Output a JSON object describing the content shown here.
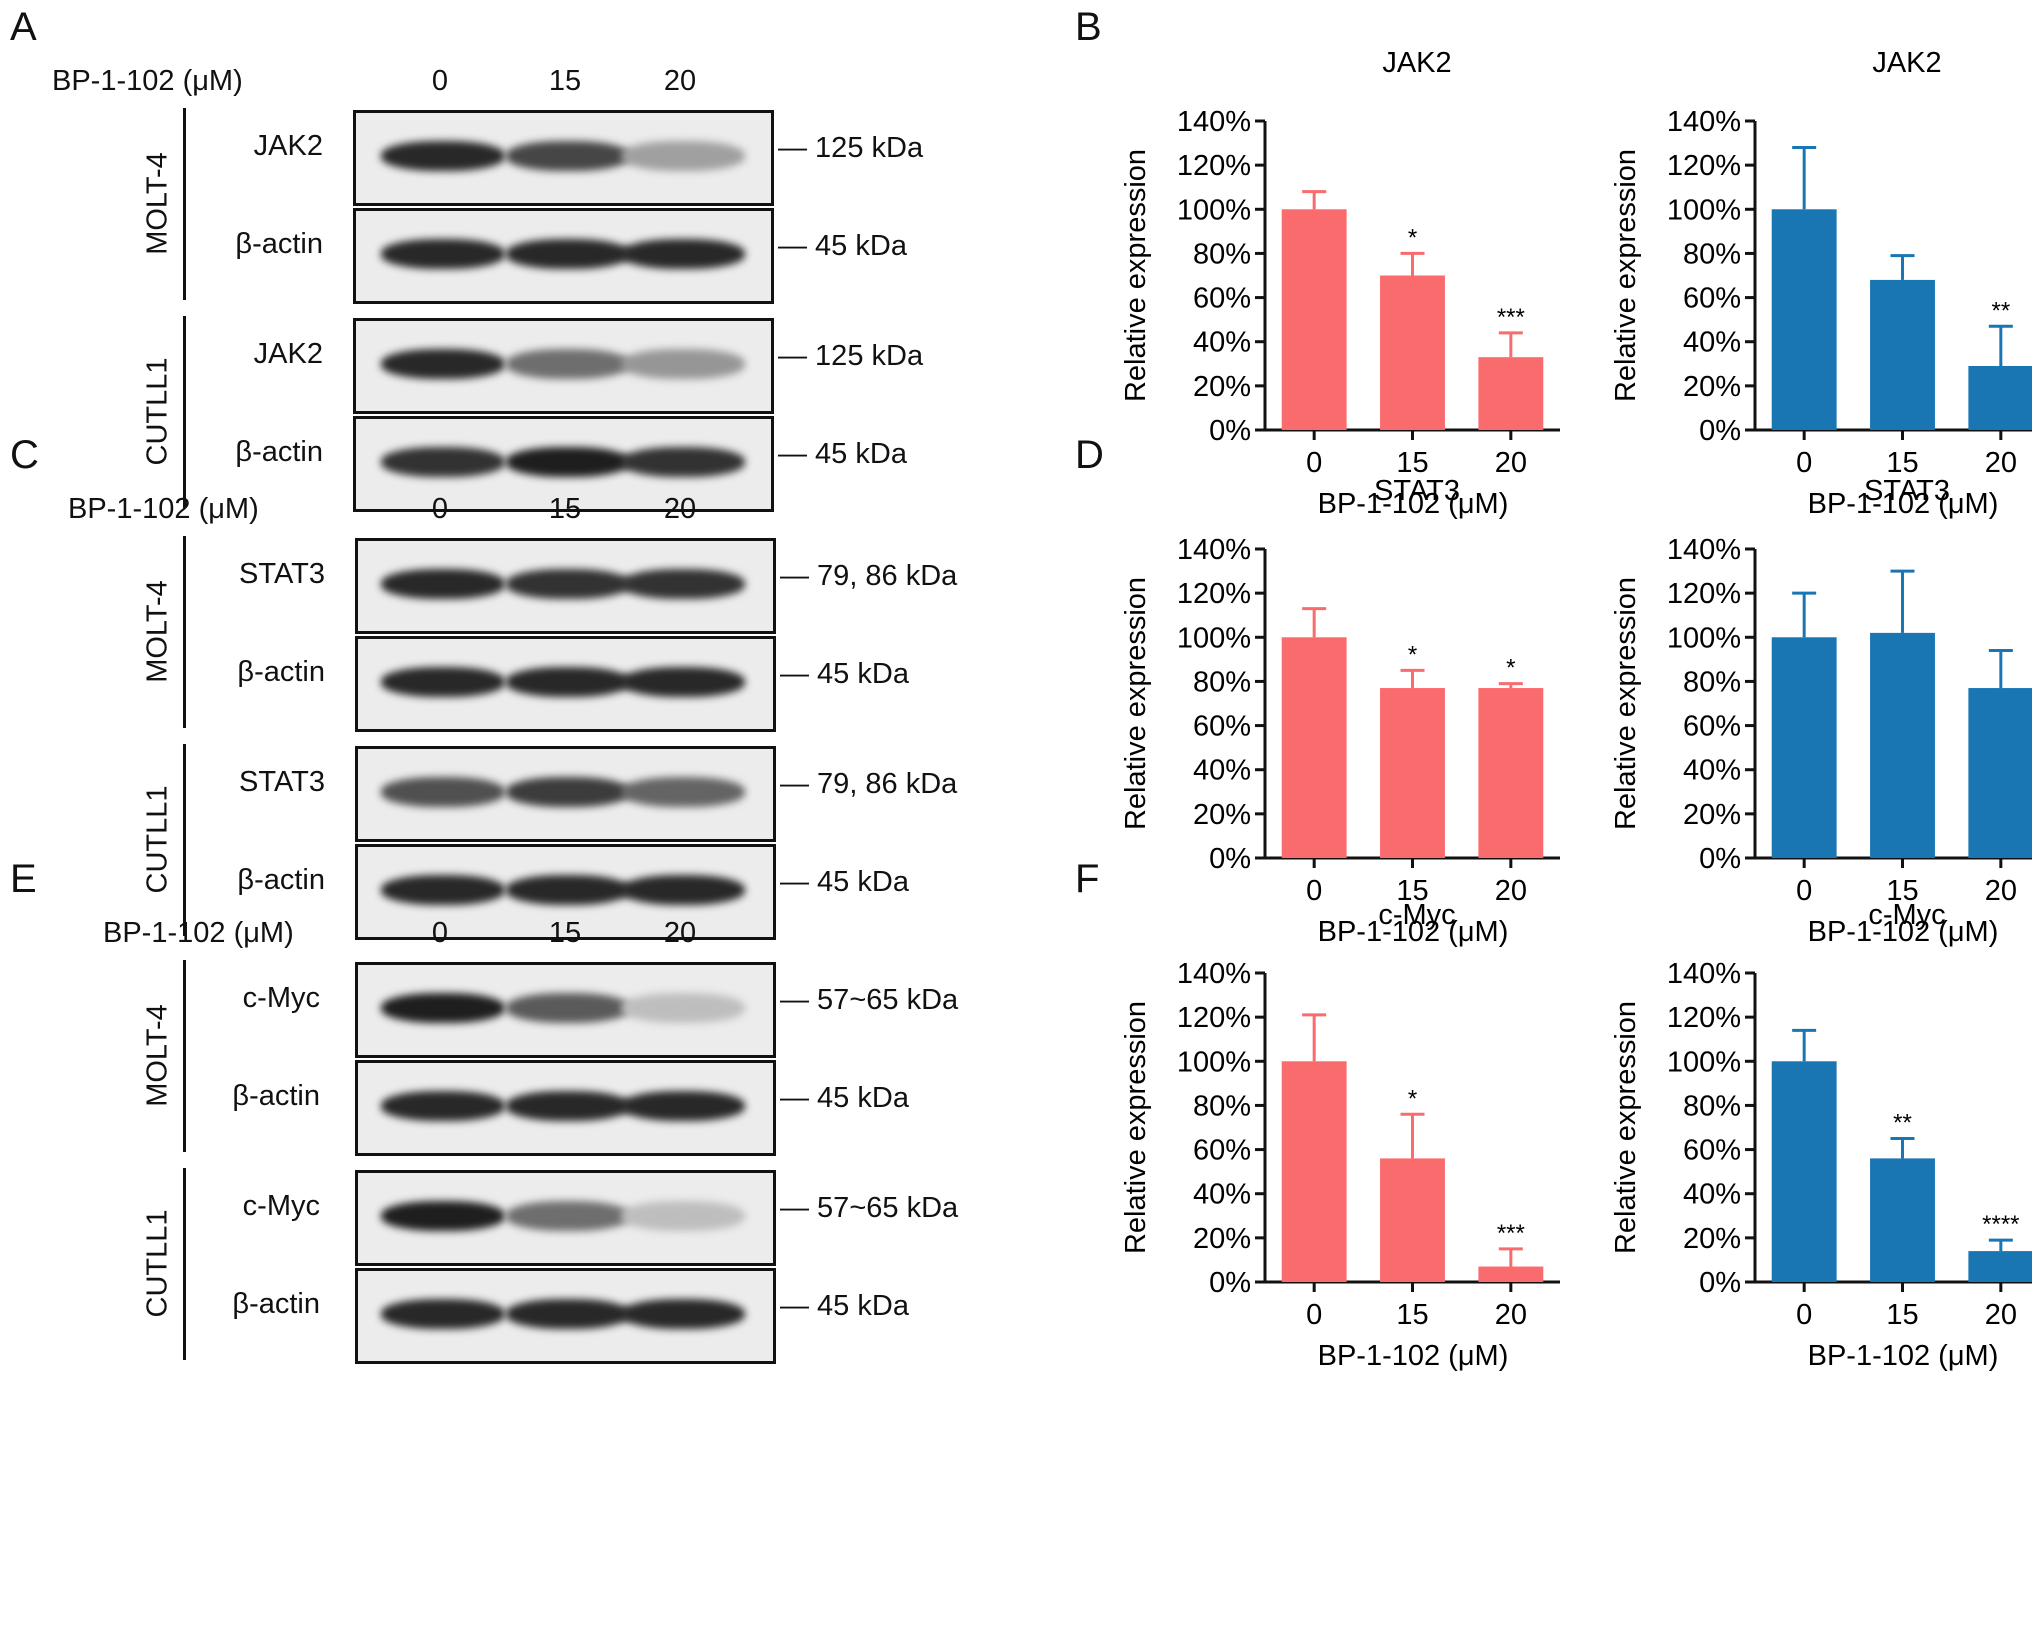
{
  "panels": [
    {
      "letter": "A",
      "condition_label": "BP-1-102 (μM)",
      "lanes": [
        "0",
        "15",
        "20"
      ],
      "groups": [
        {
          "cell_line": "MOLT-4",
          "blots": [
            {
              "protein": "JAK2",
              "kda": "125 kDa",
              "intensity": [
                0.9,
                0.75,
                0.3
              ]
            },
            {
              "protein": "β-actin",
              "kda": "45 kDa",
              "intensity": [
                0.9,
                0.9,
                0.9
              ]
            }
          ]
        },
        {
          "cell_line": "CUTLL1",
          "blots": [
            {
              "protein": "JAK2",
              "kda": "125 kDa",
              "intensity": [
                0.9,
                0.55,
                0.35
              ]
            },
            {
              "protein": "β-actin",
              "kda": "45 kDa",
              "intensity": [
                0.85,
                0.95,
                0.85
              ]
            }
          ]
        }
      ]
    },
    {
      "letter": "C",
      "condition_label": "BP-1-102 (μM)",
      "lanes": [
        "0",
        "15",
        "20"
      ],
      "groups": [
        {
          "cell_line": "MOLT-4",
          "blots": [
            {
              "protein": "STAT3",
              "kda": "79, 86 kDa",
              "intensity": [
                0.9,
                0.85,
                0.85
              ]
            },
            {
              "protein": "β-actin",
              "kda": "45 kDa",
              "intensity": [
                0.9,
                0.9,
                0.9
              ]
            }
          ]
        },
        {
          "cell_line": "CUTLL1",
          "blots": [
            {
              "protein": "STAT3",
              "kda": "79, 86 kDa",
              "intensity": [
                0.7,
                0.8,
                0.6
              ]
            },
            {
              "protein": "β-actin",
              "kda": "45 kDa",
              "intensity": [
                0.9,
                0.9,
                0.9
              ]
            }
          ]
        }
      ]
    },
    {
      "letter": "E",
      "condition_label": "BP-1-102 (μM)",
      "lanes": [
        "0",
        "15",
        "20"
      ],
      "groups": [
        {
          "cell_line": "MOLT-4",
          "blots": [
            {
              "protein": "c-Myc",
              "kda": "57~65 kDa",
              "intensity": [
                0.95,
                0.65,
                0.15
              ]
            },
            {
              "protein": "β-actin",
              "kda": "45 kDa",
              "intensity": [
                0.9,
                0.9,
                0.9
              ]
            }
          ]
        },
        {
          "cell_line": "CUTLL1",
          "blots": [
            {
              "protein": "c-Myc",
              "kda": "57~65 kDa",
              "intensity": [
                0.95,
                0.55,
                0.15
              ]
            },
            {
              "protein": "β-actin",
              "kda": "45 kDa",
              "intensity": [
                0.9,
                0.9,
                0.9
              ]
            }
          ]
        }
      ]
    }
  ],
  "chart_panel_letters": [
    "B",
    "D",
    "F"
  ],
  "chart_data": [
    {
      "type": "bar",
      "title": "JAK2",
      "categories": [
        "0",
        "15",
        "20"
      ],
      "values": [
        100,
        70,
        33
      ],
      "errors": [
        8,
        10,
        11
      ],
      "significance": [
        "",
        "*",
        "***"
      ],
      "xlabel": "BP-1-102 (μM)",
      "ylabel": "Relative expression",
      "ylim": [
        0,
        140
      ],
      "yticks": [
        "0%",
        "20%",
        "40%",
        "60%",
        "80%",
        "100%",
        "120%",
        "140%"
      ],
      "color": "#fa6b6e"
    },
    {
      "type": "bar",
      "title": "JAK2",
      "categories": [
        "0",
        "15",
        "20"
      ],
      "values": [
        100,
        68,
        29
      ],
      "errors": [
        28,
        11,
        18
      ],
      "significance": [
        "",
        "",
        "**"
      ],
      "xlabel": "BP-1-102 (μM)",
      "ylabel": "Relative expression",
      "ylim": [
        0,
        140
      ],
      "yticks": [
        "0%",
        "20%",
        "40%",
        "60%",
        "80%",
        "100%",
        "120%",
        "140%"
      ],
      "color": "#1a76b2"
    },
    {
      "type": "bar",
      "title": "STAT3",
      "categories": [
        "0",
        "15",
        "20"
      ],
      "values": [
        100,
        77,
        77
      ],
      "errors": [
        13,
        8,
        2
      ],
      "significance": [
        "",
        "*",
        "*"
      ],
      "xlabel": "BP-1-102 (μM)",
      "ylabel": "Relative expression",
      "ylim": [
        0,
        140
      ],
      "yticks": [
        "0%",
        "20%",
        "40%",
        "60%",
        "80%",
        "100%",
        "120%",
        "140%"
      ],
      "color": "#fa6b6e"
    },
    {
      "type": "bar",
      "title": "STAT3",
      "categories": [
        "0",
        "15",
        "20"
      ],
      "values": [
        100,
        102,
        77
      ],
      "errors": [
        20,
        28,
        17
      ],
      "significance": [
        "",
        "",
        ""
      ],
      "xlabel": "BP-1-102 (μM)",
      "ylabel": "Relative expression",
      "ylim": [
        0,
        140
      ],
      "yticks": [
        "0%",
        "20%",
        "40%",
        "60%",
        "80%",
        "100%",
        "120%",
        "140%"
      ],
      "color": "#1a76b2"
    },
    {
      "type": "bar",
      "title": "c-Myc",
      "categories": [
        "0",
        "15",
        "20"
      ],
      "values": [
        100,
        56,
        7
      ],
      "errors": [
        21,
        20,
        8
      ],
      "significance": [
        "",
        "*",
        "***"
      ],
      "xlabel": "BP-1-102 (μM)",
      "ylabel": "Relative expression",
      "ylim": [
        0,
        140
      ],
      "yticks": [
        "0%",
        "20%",
        "40%",
        "60%",
        "80%",
        "100%",
        "120%",
        "140%"
      ],
      "color": "#fa6b6e"
    },
    {
      "type": "bar",
      "title": "c-Myc",
      "categories": [
        "0",
        "15",
        "20"
      ],
      "values": [
        100,
        56,
        14
      ],
      "errors": [
        14,
        9,
        5
      ],
      "significance": [
        "",
        "**",
        "****"
      ],
      "xlabel": "BP-1-102 (μM)",
      "ylabel": "Relative expression",
      "ylim": [
        0,
        140
      ],
      "yticks": [
        "0%",
        "20%",
        "40%",
        "60%",
        "80%",
        "100%",
        "120%",
        "140%"
      ],
      "color": "#1a76b2"
    }
  ]
}
